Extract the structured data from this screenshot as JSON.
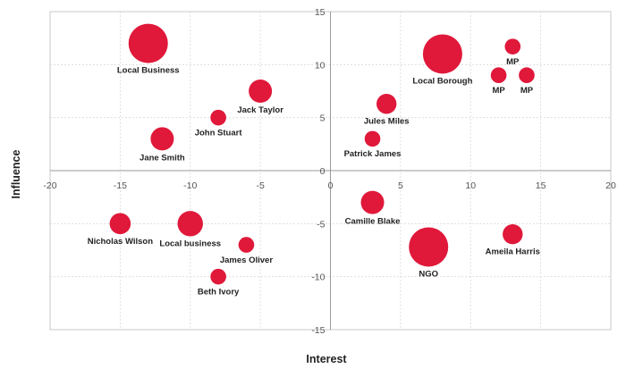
{
  "chart_data": {
    "type": "scatter",
    "xlabel": "Interest",
    "ylabel": "Influence",
    "xlim": [
      -20,
      20
    ],
    "ylim": [
      -15,
      15
    ],
    "x_ticks": [
      -20,
      -15,
      -10,
      -5,
      0,
      5,
      10,
      15,
      20
    ],
    "y_ticks": [
      -15,
      -10,
      -5,
      0,
      5,
      10,
      15
    ],
    "grid": true,
    "marker_color": "#e0183a",
    "points": [
      {
        "label": "Local Business",
        "x": -13,
        "y": 12,
        "size": 3
      },
      {
        "label": "Jack Taylor",
        "x": -5,
        "y": 7.5,
        "size": 1.5
      },
      {
        "label": "John Stuart",
        "x": -8,
        "y": 5,
        "size": 0.8
      },
      {
        "label": "Jane Smith",
        "x": -12,
        "y": 3,
        "size": 1.5
      },
      {
        "label": "Local Borough",
        "x": 8,
        "y": 11,
        "size": 3
      },
      {
        "label": "MP",
        "x": 13,
        "y": 11.7,
        "size": 0.8
      },
      {
        "label": "MP",
        "x": 12,
        "y": 9,
        "size": 0.8
      },
      {
        "label": "MP",
        "x": 14,
        "y": 9,
        "size": 0.8
      },
      {
        "label": "Jules Miles",
        "x": 4,
        "y": 6.3,
        "size": 1.2
      },
      {
        "label": "Patrick James",
        "x": 3,
        "y": 3,
        "size": 0.8
      },
      {
        "label": "Nicholas Wilson",
        "x": -15,
        "y": -5,
        "size": 1.3
      },
      {
        "label": "Local business",
        "x": -10,
        "y": -5,
        "size": 1.7
      },
      {
        "label": "James Oliver",
        "x": -6,
        "y": -7,
        "size": 0.8
      },
      {
        "label": "Beth Ivory",
        "x": -8,
        "y": -10,
        "size": 0.8
      },
      {
        "label": "Camille Blake",
        "x": 3,
        "y": -3,
        "size": 1.5
      },
      {
        "label": "NGO",
        "x": 7,
        "y": -7.2,
        "size": 3
      },
      {
        "label": "Ameila Harris",
        "x": 13,
        "y": -6,
        "size": 1.2
      }
    ]
  }
}
